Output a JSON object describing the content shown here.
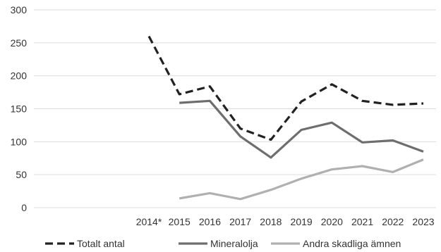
{
  "chart_data": {
    "type": "line",
    "title": "",
    "xlabel": "",
    "ylabel": "",
    "categories": [
      "2014*",
      "2015",
      "2016",
      "2017",
      "2018",
      "2019",
      "2020",
      "2021",
      "2022",
      "2023"
    ],
    "ylim": [
      0,
      300
    ],
    "yticks": [
      "0",
      "50",
      "100",
      "150",
      "200",
      "250",
      "300"
    ],
    "grid": true,
    "legend_position": "bottom",
    "series": [
      {
        "name": "Totalt antal",
        "style": "dashed",
        "color": "#222222",
        "values": [
          260,
          172,
          184,
          120,
          103,
          161,
          187,
          162,
          156,
          158
        ]
      },
      {
        "name": "Mineralolja",
        "style": "solid",
        "color": "#6e6e6e",
        "values": [
          null,
          159,
          162,
          108,
          76,
          118,
          129,
          99,
          102,
          85
        ]
      },
      {
        "name": "Andra skadliga ämnen",
        "style": "solid",
        "color": "#b0b0b0",
        "values": [
          null,
          14,
          22,
          13,
          27,
          44,
          58,
          63,
          54,
          73
        ]
      }
    ]
  }
}
